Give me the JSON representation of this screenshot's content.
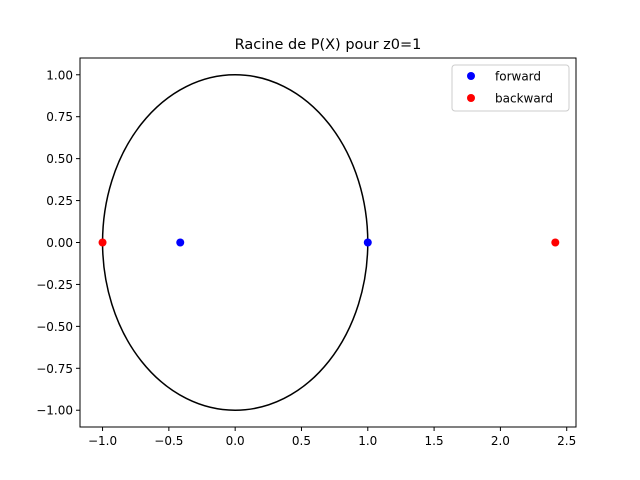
{
  "chart_data": {
    "type": "scatter",
    "title": "Racine de P(X) pour z0=1",
    "xlabel": "",
    "ylabel": "",
    "xlim": [
      -1.17,
      2.57
    ],
    "ylim": [
      -1.1,
      1.1
    ],
    "x_ticks": [
      -1.0,
      -0.5,
      0.0,
      0.5,
      1.0,
      1.5,
      2.0,
      2.5
    ],
    "x_tick_labels": [
      "−1.0",
      "−0.5",
      "0.0",
      "0.5",
      "1.0",
      "1.5",
      "2.0",
      "2.5"
    ],
    "y_ticks": [
      1.0,
      0.75,
      0.5,
      0.25,
      0.0,
      -0.25,
      -0.5,
      -0.75,
      -1.0
    ],
    "y_tick_labels": [
      "1.00",
      "0.75",
      "0.50",
      "0.25",
      "0.00",
      "−0.25",
      "−0.50",
      "−0.75",
      "−1.00"
    ],
    "grid": false,
    "legend_position": "top-right",
    "unit_circle": {
      "center": [
        0,
        0
      ],
      "radius": 1,
      "color": "#000000"
    },
    "series": [
      {
        "name": "forward",
        "color": "#0000ff",
        "points": [
          [
            -0.414,
            0.0
          ],
          [
            1.0,
            0.0
          ]
        ]
      },
      {
        "name": "backward",
        "color": "#ff0000",
        "points": [
          [
            -1.0,
            0.0
          ],
          [
            2.414,
            0.0
          ]
        ]
      }
    ]
  }
}
